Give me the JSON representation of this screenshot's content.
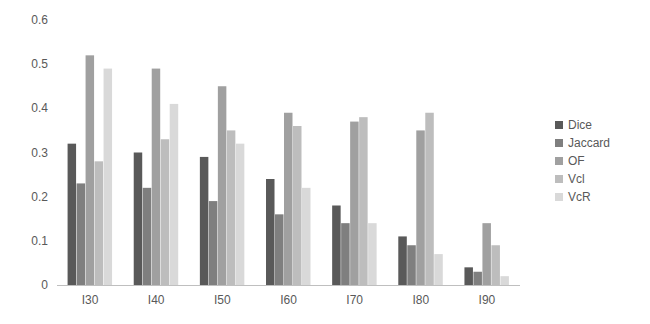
{
  "chart_data": {
    "type": "bar",
    "categories": [
      "I30",
      "I40",
      "I50",
      "I60",
      "I70",
      "I80",
      "I90"
    ],
    "series": [
      {
        "name": "Dice",
        "color": "#595959",
        "values": [
          0.32,
          0.3,
          0.29,
          0.24,
          0.18,
          0.11,
          0.04
        ]
      },
      {
        "name": "Jaccard",
        "color": "#7f7f7f",
        "values": [
          0.23,
          0.22,
          0.19,
          0.16,
          0.14,
          0.09,
          0.03
        ]
      },
      {
        "name": "OF",
        "color": "#a0a0a0",
        "values": [
          0.52,
          0.49,
          0.45,
          0.39,
          0.37,
          0.35,
          0.14
        ]
      },
      {
        "name": "Vcl",
        "color": "#bdbdbd",
        "values": [
          0.28,
          0.33,
          0.35,
          0.36,
          0.38,
          0.39,
          0.09
        ]
      },
      {
        "name": "VcR",
        "color": "#d9d9d9",
        "values": [
          0.49,
          0.41,
          0.32,
          0.22,
          0.14,
          0.07,
          0.02
        ]
      }
    ],
    "ylim": [
      0,
      0.6
    ],
    "yticks": [
      0,
      0.1,
      0.2,
      0.3,
      0.4,
      0.5,
      0.6
    ],
    "grid": false,
    "legend": "right"
  }
}
